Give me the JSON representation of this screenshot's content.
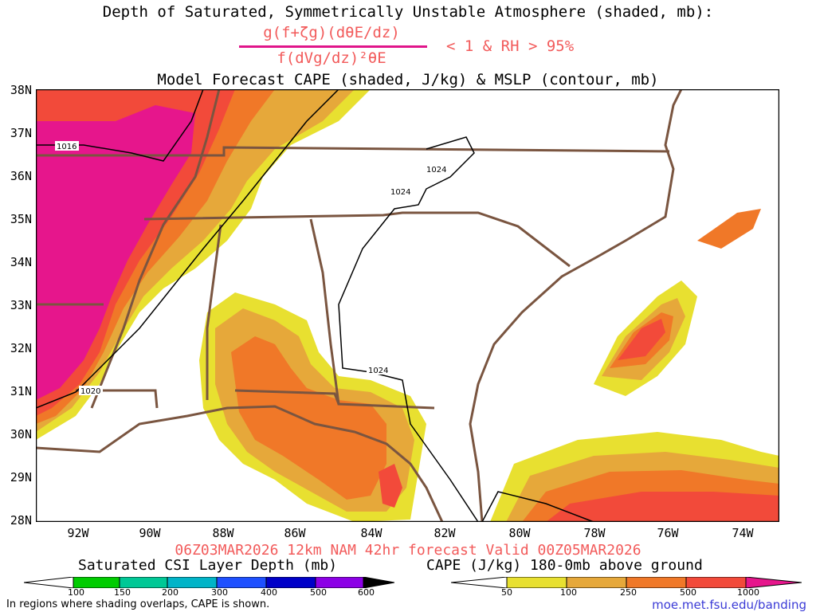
{
  "title_line1": "Depth of Saturated, Symmetrically Unstable Atmosphere (shaded, mb):",
  "fraction_numerator": "g(f+ζg)(dθE/dz)",
  "fraction_denominator": "f(dVg/dz)²θE",
  "condition": "< 1 & RH > 95%",
  "title_line3": "Model Forecast CAPE (shaded, J/kg) & MSLP (contour, mb)",
  "latitude_labels": [
    "38N",
    "37N",
    "36N",
    "35N",
    "34N",
    "33N",
    "32N",
    "31N",
    "30N",
    "29N",
    "28N"
  ],
  "longitude_labels": [
    "92W",
    "90W",
    "88W",
    "86W",
    "84W",
    "82W",
    "80W",
    "78W",
    "76W",
    "74W"
  ],
  "valid_line": "06Z03MAR2026 12km NAM 42hr forecast Valid 00Z05MAR2026",
  "csi_colorbar": {
    "title": "Saturated CSI Layer Depth (mb)",
    "labels": [
      "100",
      "150",
      "200",
      "300",
      "400",
      "500",
      "600"
    ],
    "colors": [
      "#ffffff",
      "#00cc00",
      "#00c896",
      "#00b4c8",
      "#1e50ff",
      "#0000c8",
      "#8c00e6",
      "#000000"
    ]
  },
  "cape_colorbar": {
    "title": "CAPE (J/kg) 180-0mb above ground",
    "labels": [
      "50",
      "100",
      "250",
      "500",
      "1000"
    ],
    "colors": [
      "#ffffff",
      "#e8e030",
      "#e6a83a",
      "#f07828",
      "#f24a3a",
      "#e6168c"
    ]
  },
  "pressure_labels": {
    "west": "1016",
    "southwest": "1020",
    "northeast_a": "1024",
    "northeast_b": "1024",
    "south": "1024"
  },
  "note": "In regions where shading overlaps, CAPE is shown.",
  "url": "moe.met.fsu.edu/banding",
  "colors": {
    "boundary": "#7a5540",
    "cape_yellow": "#e8e030",
    "cape_lightorange": "#e6a83a",
    "cape_orange": "#f07828",
    "cape_red": "#f24a3a",
    "cape_magenta": "#e6168c"
  }
}
